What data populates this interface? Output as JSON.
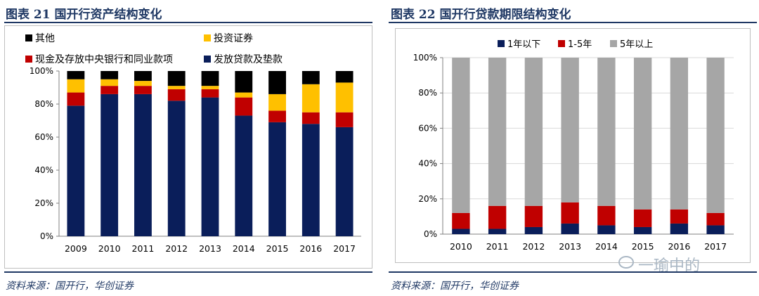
{
  "left": {
    "title": "图表 21  国开行资产结构变化",
    "source": "资料来源：国开行，华创证券"
  },
  "right": {
    "title": "图表 22  国开行贷款期限结构变化",
    "source": "资料来源：国开行，华创证券"
  },
  "watermark": "一瑜中的",
  "colors": {
    "navy": "#0a1e5a",
    "red": "#c00000",
    "gold": "#ffc000",
    "black": "#000000",
    "gray": "#a6a6a6",
    "rule": "#1f3864"
  },
  "chart_data": [
    {
      "type": "bar",
      "stacked": true,
      "title": "国开行资产结构变化",
      "categories": [
        "2009",
        "2010",
        "2011",
        "2012",
        "2013",
        "2014",
        "2015",
        "2016",
        "2017"
      ],
      "y_ticks": [
        "0%",
        "20%",
        "40%",
        "60%",
        "80%",
        "100%"
      ],
      "ylim": [
        0,
        100
      ],
      "legend_position": "top",
      "series": [
        {
          "name": "发放贷款及垫款",
          "color": "#0a1e5a",
          "values": [
            79,
            86,
            86,
            82,
            84,
            73,
            69,
            68,
            66
          ]
        },
        {
          "name": "现金及存放中央银行和同业款项",
          "color": "#c00000",
          "values": [
            8,
            5,
            5,
            7,
            5,
            11,
            7,
            7,
            9
          ]
        },
        {
          "name": "投资证券",
          "color": "#ffc000",
          "values": [
            8,
            4,
            3,
            2,
            2,
            3,
            10,
            17,
            18
          ]
        },
        {
          "name": "其他",
          "color": "#000000",
          "values": [
            5,
            5,
            6,
            9,
            9,
            13,
            14,
            8,
            7
          ]
        }
      ],
      "legend_items": [
        {
          "name": "其他",
          "color": "#000000"
        },
        {
          "name": "投资证券",
          "color": "#ffc000"
        },
        {
          "name": "现金及存放中央银行和同业款项",
          "color": "#c00000"
        },
        {
          "name": "发放贷款及垫款",
          "color": "#0a1e5a"
        }
      ]
    },
    {
      "type": "bar",
      "stacked": true,
      "title": "国开行贷款期限结构变化",
      "categories": [
        "2010",
        "2011",
        "2012",
        "2013",
        "2014",
        "2015",
        "2016",
        "2017"
      ],
      "y_ticks": [
        "0%",
        "20%",
        "40%",
        "60%",
        "80%",
        "100%"
      ],
      "ylim": [
        0,
        100
      ],
      "legend_position": "top",
      "series": [
        {
          "name": "1年以下",
          "color": "#0a1e5a",
          "values": [
            3,
            3,
            4,
            6,
            5,
            4,
            6,
            5
          ]
        },
        {
          "name": "1-5年",
          "color": "#c00000",
          "values": [
            9,
            13,
            12,
            12,
            11,
            10,
            8,
            7
          ]
        },
        {
          "name": "5年以上",
          "color": "#a6a6a6",
          "values": [
            88,
            84,
            84,
            82,
            84,
            86,
            86,
            88
          ]
        }
      ],
      "legend_items": [
        {
          "name": "1年以下",
          "color": "#0a1e5a"
        },
        {
          "name": "1-5年",
          "color": "#c00000"
        },
        {
          "name": "5年以上",
          "color": "#a6a6a6"
        }
      ]
    }
  ]
}
